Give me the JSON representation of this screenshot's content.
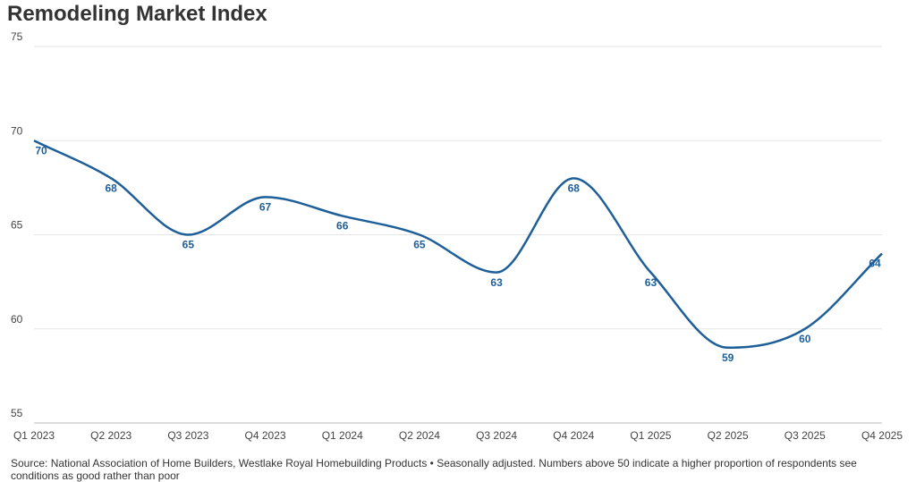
{
  "chart_data": {
    "type": "line",
    "title": "Remodeling Market Index",
    "categories": [
      "Q1 2023",
      "Q2 2023",
      "Q3 2023",
      "Q4 2023",
      "Q1 2024",
      "Q2 2024",
      "Q3 2024",
      "Q4 2024",
      "Q1 2025",
      "Q2 2025",
      "Q3 2025",
      "Q4 2025"
    ],
    "values": [
      70,
      68,
      65,
      67,
      66,
      65,
      63,
      68,
      63,
      59,
      60,
      64
    ],
    "color": "#1f5f99",
    "ylim": [
      55,
      75
    ],
    "yticks": [
      55,
      60,
      65,
      70,
      75
    ],
    "grid": true,
    "source": "Source: National Association of Home Builders, Westlake Royal Homebuilding Products • Seasonally adjusted. Numbers above 50 indicate a higher proportion of respondents see conditions as good rather than poor"
  }
}
